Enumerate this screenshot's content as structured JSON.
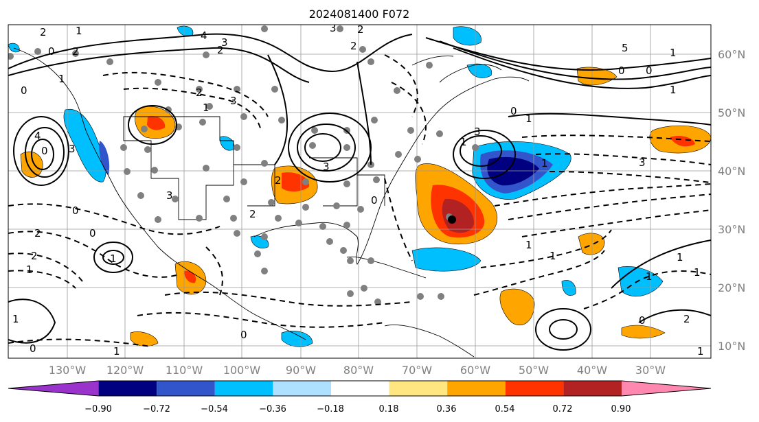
{
  "title": "2024081400 F072",
  "map": {
    "lon_labels": [
      "130°W",
      "120°W",
      "110°W",
      "100°W",
      "90°W",
      "80°W",
      "70°W",
      "60°W",
      "50°W",
      "40°W",
      "30°W"
    ],
    "lat_labels": [
      "60°N",
      "50°N",
      "40°N",
      "30°N",
      "20°N",
      "10°N"
    ],
    "contour_labels": [
      "2",
      "1",
      "4",
      "3",
      "2",
      "3",
      "0",
      "0",
      "1",
      "2",
      "2",
      "5",
      "1",
      "0",
      "0",
      "1",
      "1",
      "0",
      "1",
      "4",
      "0",
      "3",
      "2",
      "3",
      "1",
      "3",
      "1",
      "2",
      "1",
      "0",
      "0",
      "2",
      "3",
      "1",
      "3",
      "3",
      "2",
      "0",
      "2",
      "2",
      "1",
      "1",
      "1",
      "1",
      "0",
      "1",
      "1",
      "1",
      "2",
      "0",
      "1",
      "0"
    ]
  },
  "colorbar": {
    "labels": [
      "−0.90",
      "−0.72",
      "−0.54",
      "−0.36",
      "−0.18",
      "0.18",
      "0.36",
      "0.54",
      "0.72",
      "0.90"
    ],
    "colors": [
      "#9933cc",
      "#000080",
      "#3355cc",
      "#00bfff",
      "#aee0ff",
      "#ffffff",
      "#ffe680",
      "#ffa500",
      "#ff3300",
      "#b22222",
      "#ff88b0"
    ]
  }
}
